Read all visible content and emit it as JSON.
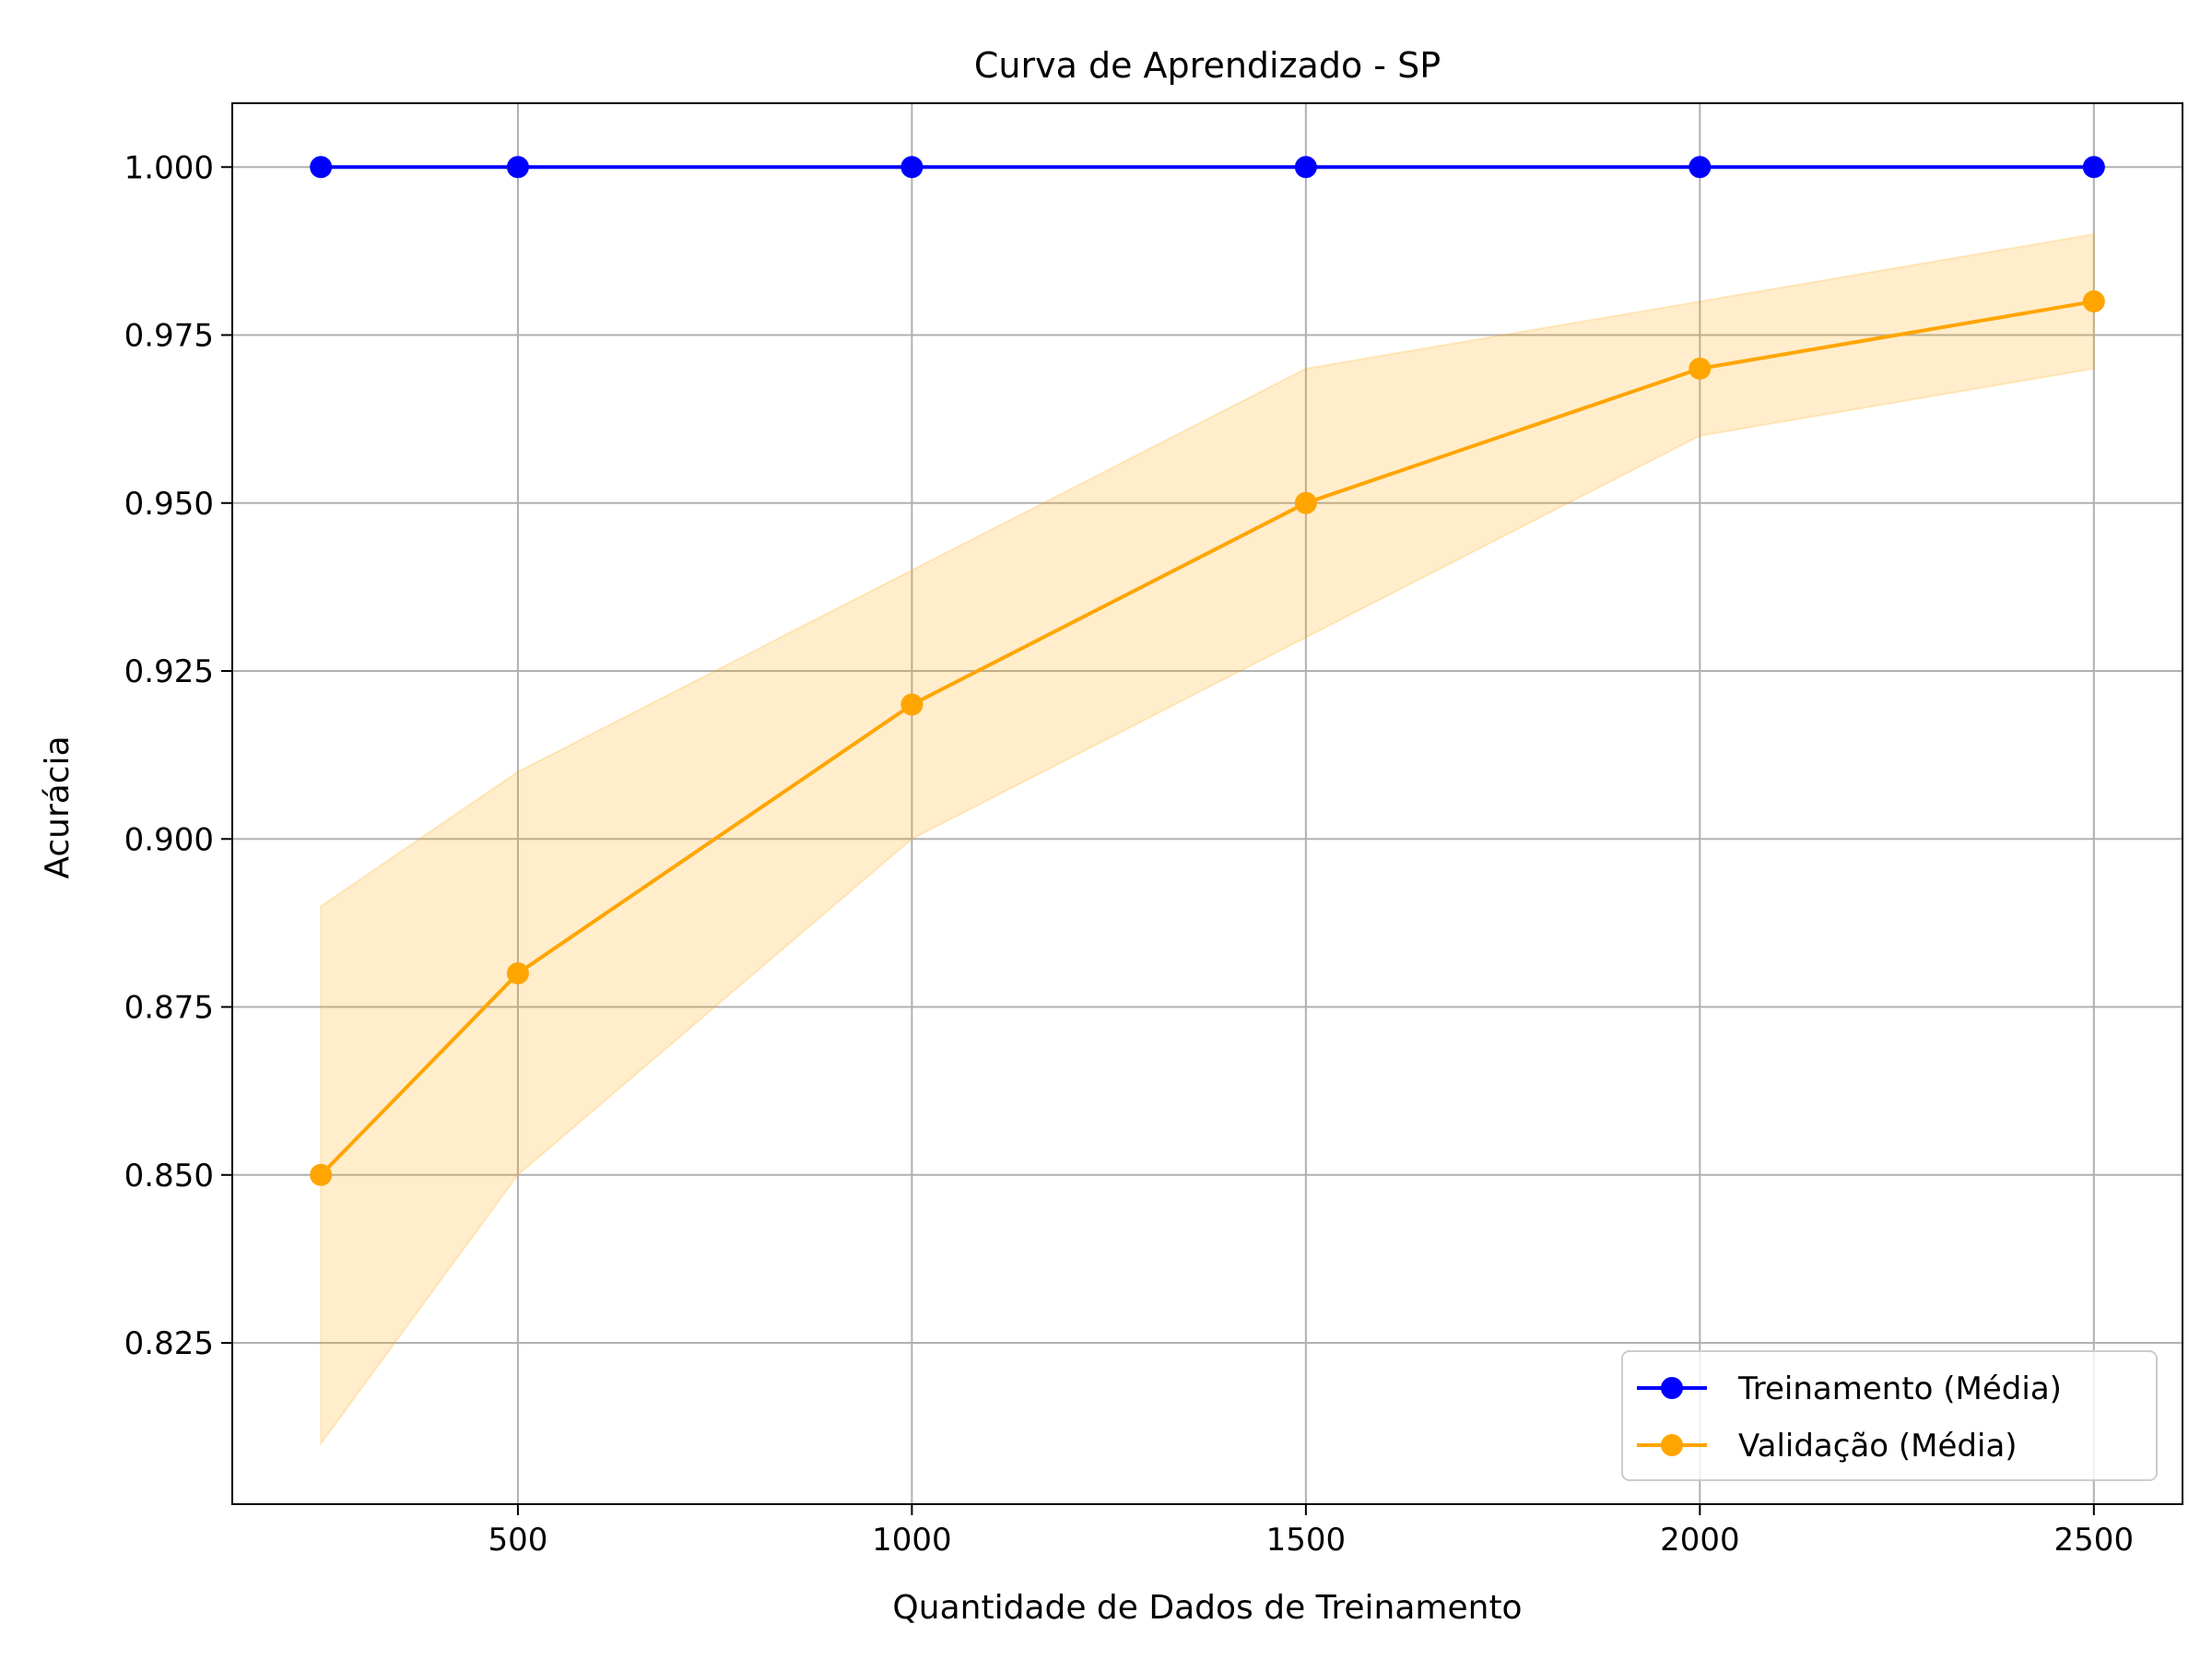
{
  "chart_data": {
    "type": "line",
    "title": "Curva de Aprendizado - SP",
    "xlabel": "Quantidade de Dados de Treinamento",
    "ylabel": "Acurácia",
    "xlim": [
      137.5,
      2612.5
    ],
    "ylim": [
      0.801,
      1.0095
    ],
    "x_ticks": [
      500,
      1000,
      1500,
      2000,
      2500
    ],
    "x_tick_labels": [
      "500",
      "1000",
      "1500",
      "2000",
      "2500"
    ],
    "y_ticks": [
      0.825,
      0.85,
      0.875,
      0.9,
      0.925,
      0.95,
      0.975,
      1.0
    ],
    "y_tick_labels": [
      "0.825",
      "0.850",
      "0.875",
      "0.900",
      "0.925",
      "0.950",
      "0.975",
      "1.000"
    ],
    "grid": true,
    "legend_position": "lower-right",
    "x": [
      250,
      500,
      1000,
      1500,
      2000,
      2500
    ],
    "series": [
      {
        "name": "Treinamento (Média)",
        "color": "#0000ff",
        "values": [
          1.0,
          1.0,
          1.0,
          1.0,
          1.0,
          1.0
        ]
      },
      {
        "name": "Validação (Média)",
        "color": "#ffa500",
        "values": [
          0.85,
          0.88,
          0.92,
          0.95,
          0.97,
          0.98
        ],
        "band_lower": [
          0.81,
          0.85,
          0.9,
          0.93,
          0.96,
          0.97
        ],
        "band_upper": [
          0.89,
          0.91,
          0.94,
          0.97,
          0.98,
          0.99
        ]
      }
    ]
  }
}
